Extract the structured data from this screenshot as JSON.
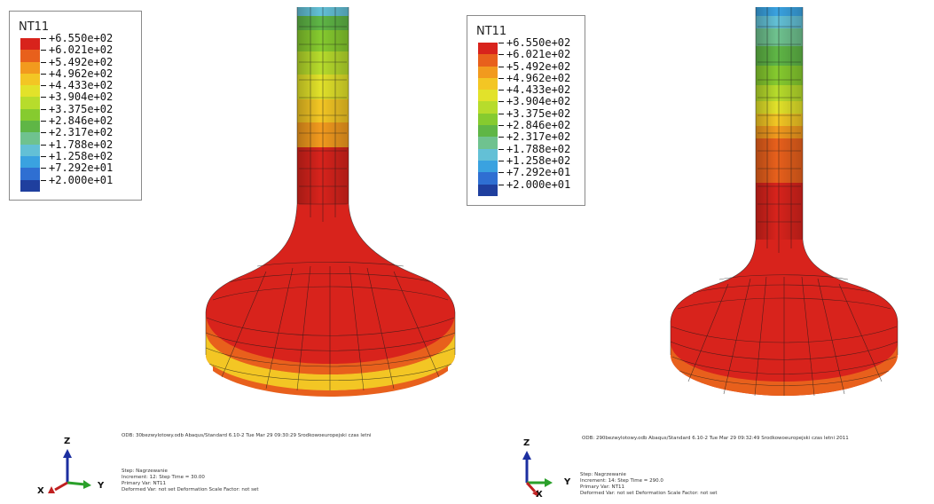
{
  "legend": {
    "title": "NT11",
    "values": [
      "+6.550e+02",
      "+6.021e+02",
      "+5.492e+02",
      "+4.962e+02",
      "+4.433e+02",
      "+3.904e+02",
      "+3.375e+02",
      "+2.846e+02",
      "+2.317e+02",
      "+1.788e+02",
      "+1.258e+02",
      "+7.292e+01",
      "+2.000e+01"
    ],
    "colors": [
      "#d8231c",
      "#e8601c",
      "#f29a1e",
      "#f3c624",
      "#e2e22a",
      "#b7dc2c",
      "#86cb2f",
      "#5fb646",
      "#6fc28f",
      "#63c0d6",
      "#3aa2e0",
      "#2f6fd2",
      "#1f3f9e"
    ]
  },
  "panels": [
    {
      "info": {
        "odb_line": "ODB: 30bezwylotowy.odb    Abaqus/Standard 6.10-2    Tue Mar 29 09:30:29 Srodkowoeuropejski czas letni",
        "step_line": "Step: Nagrzewanie",
        "increment_line": "Increment:    12: Step Time =    30.00",
        "primary_var_line": "Primary Var: NT11",
        "deformed_var_line": "Deformed Var: not set    Deformation Scale Factor: not set"
      },
      "triad": {
        "z": "Z",
        "y": "Y",
        "x": "X"
      }
    },
    {
      "info": {
        "odb_line": "ODB: 290bezwylotowy.odb    Abaqus/Standard 6.10-2    Tue Mar 29 09:32:49 Srodkowoeuropejski czas letni 2011",
        "step_line": "Step: Nagrzewanie",
        "increment_line": "Increment:    14: Step Time =    290.0",
        "primary_var_line": "Primary Var: NT11",
        "deformed_var_line": "Deformed Var: not set    Deformation Scale Factor: not set"
      },
      "triad": {
        "z": "Z",
        "y": "Y",
        "x": "X"
      }
    }
  ]
}
